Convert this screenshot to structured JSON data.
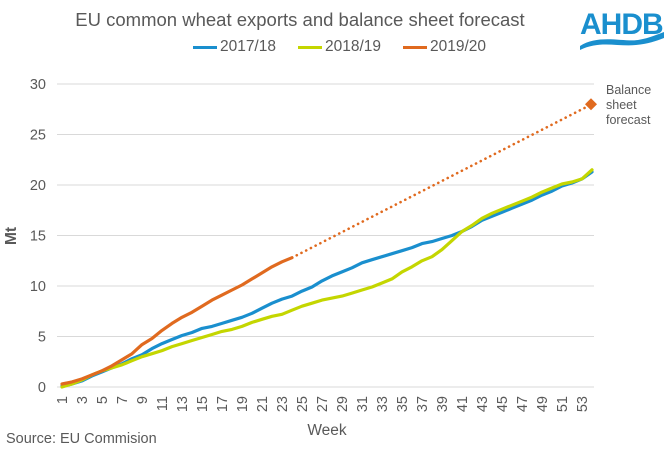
{
  "chart_data": {
    "type": "line",
    "title": "EU common wheat exports and balance sheet forecast",
    "xlabel": "Week",
    "ylabel": "Mt",
    "ylim": [
      0,
      30
    ],
    "xlim": [
      1,
      54
    ],
    "yticks": [
      0,
      5,
      10,
      15,
      20,
      25,
      30
    ],
    "xticks": [
      1,
      3,
      5,
      7,
      9,
      11,
      13,
      15,
      17,
      19,
      21,
      23,
      25,
      27,
      29,
      31,
      33,
      35,
      37,
      39,
      41,
      43,
      45,
      47,
      49,
      51,
      53
    ],
    "grid": "horizontal",
    "legend_position": "top-center",
    "series": [
      {
        "name": "2017/18",
        "color": "#1A8FCE",
        "x": [
          1,
          2,
          3,
          4,
          5,
          6,
          7,
          8,
          9,
          10,
          11,
          12,
          13,
          14,
          15,
          16,
          17,
          18,
          19,
          20,
          21,
          22,
          23,
          24,
          25,
          26,
          27,
          28,
          29,
          30,
          31,
          32,
          33,
          34,
          35,
          36,
          37,
          38,
          39,
          40,
          41,
          42,
          43,
          44,
          45,
          46,
          47,
          48,
          49,
          50,
          51,
          52,
          53,
          54
        ],
        "values": [
          0.1,
          0.3,
          0.6,
          1.1,
          1.5,
          1.9,
          2.3,
          2.8,
          3.2,
          3.8,
          4.3,
          4.7,
          5.1,
          5.4,
          5.8,
          6.0,
          6.3,
          6.6,
          6.9,
          7.3,
          7.8,
          8.3,
          8.7,
          9.0,
          9.5,
          9.9,
          10.5,
          11.0,
          11.4,
          11.8,
          12.3,
          12.6,
          12.9,
          13.2,
          13.5,
          13.8,
          14.2,
          14.4,
          14.7,
          15.0,
          15.4,
          15.9,
          16.5,
          16.9,
          17.3,
          17.7,
          18.1,
          18.5,
          19.0,
          19.4,
          19.9,
          20.2,
          20.6,
          21.3
        ]
      },
      {
        "name": "2018/19",
        "color": "#C4D600",
        "x": [
          1,
          2,
          3,
          4,
          5,
          6,
          7,
          8,
          9,
          10,
          11,
          12,
          13,
          14,
          15,
          16,
          17,
          18,
          19,
          20,
          21,
          22,
          23,
          24,
          25,
          26,
          27,
          28,
          29,
          30,
          31,
          32,
          33,
          34,
          35,
          36,
          37,
          38,
          39,
          40,
          41,
          42,
          43,
          44,
          45,
          46,
          47,
          48,
          49,
          50,
          51,
          52,
          53,
          54
        ],
        "values": [
          0.0,
          0.3,
          0.7,
          1.2,
          1.6,
          1.9,
          2.2,
          2.6,
          3.0,
          3.3,
          3.6,
          4.0,
          4.3,
          4.6,
          4.9,
          5.2,
          5.5,
          5.7,
          6.0,
          6.4,
          6.7,
          7.0,
          7.2,
          7.6,
          8.0,
          8.3,
          8.6,
          8.8,
          9.0,
          9.3,
          9.6,
          9.9,
          10.3,
          10.7,
          11.4,
          11.9,
          12.5,
          12.9,
          13.6,
          14.5,
          15.4,
          16.0,
          16.7,
          17.2,
          17.6,
          18.0,
          18.4,
          18.8,
          19.3,
          19.7,
          20.1,
          20.3,
          20.6,
          21.5
        ]
      },
      {
        "name": "2019/20",
        "color": "#E06A1F",
        "x": [
          1,
          2,
          3,
          4,
          5,
          6,
          7,
          8,
          9,
          10,
          11,
          12,
          13,
          14,
          15,
          16,
          17,
          18,
          19,
          20,
          21,
          22,
          23,
          24
        ],
        "values": [
          0.3,
          0.5,
          0.8,
          1.2,
          1.6,
          2.1,
          2.7,
          3.3,
          4.2,
          4.8,
          5.6,
          6.3,
          6.9,
          7.4,
          8.0,
          8.6,
          9.1,
          9.6,
          10.1,
          10.7,
          11.3,
          11.9,
          12.4,
          12.8
        ]
      }
    ],
    "forecast": {
      "label": "Balance sheet forecast",
      "label_lines": [
        "Balance",
        "sheet",
        "forecast"
      ],
      "color": "#E06A1F",
      "style": "dotted",
      "from": {
        "x": 24,
        "y": 12.8
      },
      "to": {
        "x": 54,
        "y": 28.0
      },
      "marker": "diamond"
    }
  },
  "source": "Source: EU Commision",
  "logo": {
    "text": "AHDB",
    "color": "#1A8FCE"
  }
}
